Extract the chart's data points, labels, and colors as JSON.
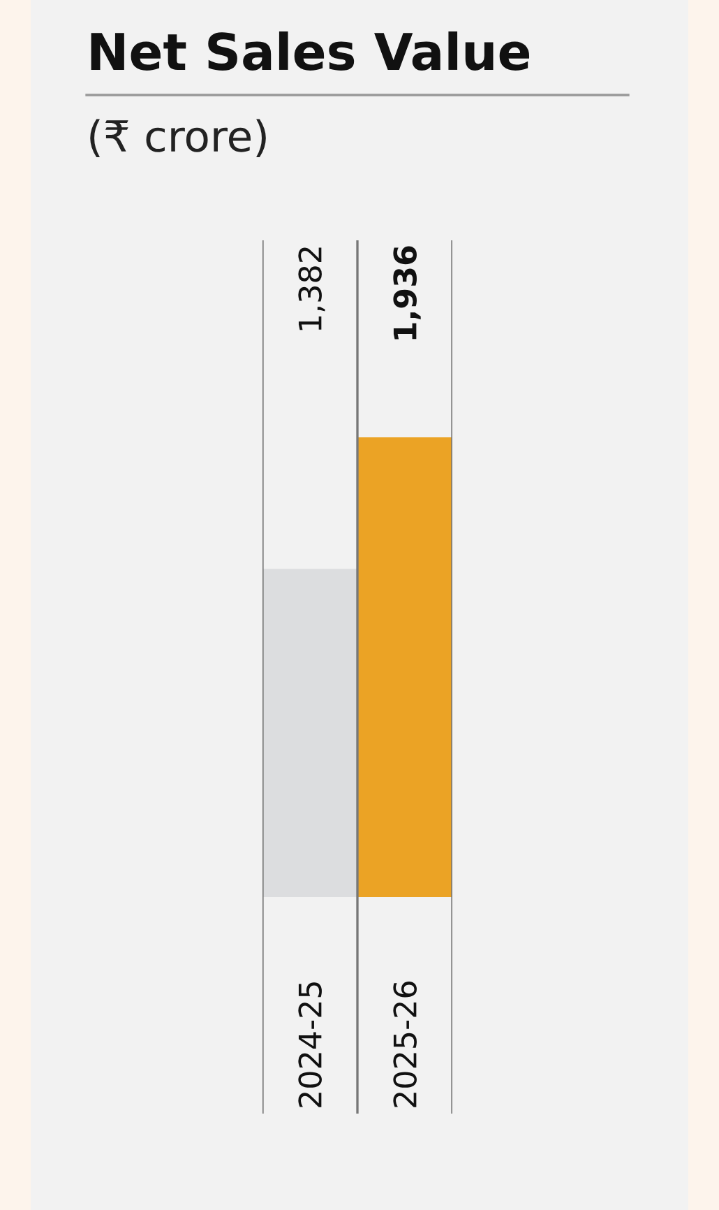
{
  "chart_data": {
    "type": "bar",
    "title": "Net Sales Value",
    "subtitle": "(₹ crore)",
    "categories": [
      "2024-25",
      "2025-26"
    ],
    "values": [
      1382,
      1936
    ],
    "colors": [
      "#dcdddf",
      "#eba325"
    ],
    "value_labels": [
      "1,382",
      "1,936"
    ]
  }
}
